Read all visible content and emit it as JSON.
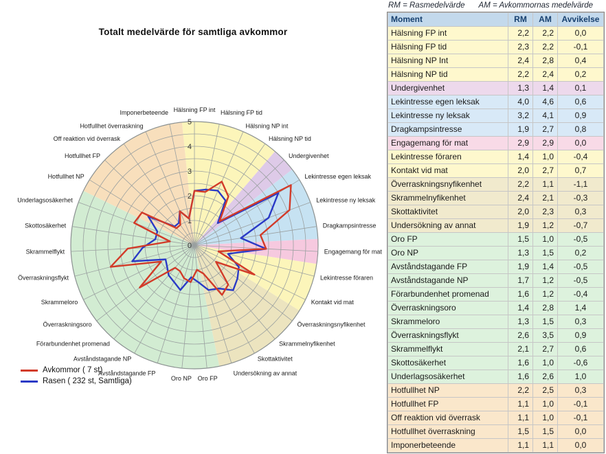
{
  "note": {
    "rm_def": "RM = Rasmedelvärde",
    "am_def": "AM = Avkommornas medelvärde"
  },
  "table": {
    "headers": [
      "Moment",
      "RM",
      "AM",
      "Avvikelse"
    ],
    "rows": [
      {
        "moment": "Hälsning FP int",
        "rm": "2,2",
        "am": "2,2",
        "avvikelse": "0,0",
        "group": "yellow"
      },
      {
        "moment": "Hälsning FP tid",
        "rm": "2,3",
        "am": "2,2",
        "avvikelse": "-0,1",
        "group": "yellow"
      },
      {
        "moment": "Hälsning NP Int",
        "rm": "2,4",
        "am": "2,8",
        "avvikelse": "0,4",
        "group": "yellow"
      },
      {
        "moment": "Hälsning NP tid",
        "rm": "2,2",
        "am": "2,4",
        "avvikelse": "0,2",
        "group": "yellow"
      },
      {
        "moment": "Undergivenhet",
        "rm": "1,3",
        "am": "1,4",
        "avvikelse": "0,1",
        "group": "violet"
      },
      {
        "moment": "Lekintresse egen leksak",
        "rm": "4,0",
        "am": "4,6",
        "avvikelse": "0,6",
        "group": "blue"
      },
      {
        "moment": "Lekintresse ny leksak",
        "rm": "3,2",
        "am": "4,1",
        "avvikelse": "0,9",
        "group": "blue"
      },
      {
        "moment": "Dragkampsintresse",
        "rm": "1,9",
        "am": "2,7",
        "avvikelse": "0,8",
        "group": "blue"
      },
      {
        "moment": "Engagemang för mat",
        "rm": "2,9",
        "am": "2,9",
        "avvikelse": "0,0",
        "group": "pink"
      },
      {
        "moment": "Lekintresse föraren",
        "rm": "1,4",
        "am": "1,0",
        "avvikelse": "-0,4",
        "group": "yellow"
      },
      {
        "moment": "Kontakt vid mat",
        "rm": "2,0",
        "am": "2,7",
        "avvikelse": "0,7",
        "group": "yellow"
      },
      {
        "moment": "Överraskningsnyfikenhet",
        "rm": "2,2",
        "am": "1,1",
        "avvikelse": "-1,1",
        "group": "tan"
      },
      {
        "moment": "Skrammelnyfikenhet",
        "rm": "2,4",
        "am": "2,1",
        "avvikelse": "-0,3",
        "group": "tan"
      },
      {
        "moment": "Skottaktivitet",
        "rm": "2,0",
        "am": "2,3",
        "avvikelse": "0,3",
        "group": "tan"
      },
      {
        "moment": "Undersökning av annat",
        "rm": "1,9",
        "am": "1,2",
        "avvikelse": "-0,7",
        "group": "tan"
      },
      {
        "moment": "Oro FP",
        "rm": "1,5",
        "am": "1,0",
        "avvikelse": "-0,5",
        "group": "green"
      },
      {
        "moment": "Oro NP",
        "rm": "1,3",
        "am": "1,5",
        "avvikelse": "0,2",
        "group": "green"
      },
      {
        "moment": "Avståndstagande FP",
        "rm": "1,9",
        "am": "1,4",
        "avvikelse": "-0,5",
        "group": "green"
      },
      {
        "moment": "Avståndstagande NP",
        "rm": "1,7",
        "am": "1,2",
        "avvikelse": "-0,5",
        "group": "green"
      },
      {
        "moment": "Förarbundenhet promenad",
        "rm": "1,6",
        "am": "1,2",
        "avvikelse": "-0,4",
        "group": "green"
      },
      {
        "moment": "Överraskningsoro",
        "rm": "1,4",
        "am": "2,8",
        "avvikelse": "1,4",
        "group": "green"
      },
      {
        "moment": "Skrammeloro",
        "rm": "1,3",
        "am": "1,5",
        "avvikelse": "0,3",
        "group": "green"
      },
      {
        "moment": "Överraskningsflykt",
        "rm": "2,6",
        "am": "3,5",
        "avvikelse": "0,9",
        "group": "green"
      },
      {
        "moment": "Skrammelflykt",
        "rm": "2,1",
        "am": "2,7",
        "avvikelse": "0,6",
        "group": "green"
      },
      {
        "moment": "Skottosäkerhet",
        "rm": "1,6",
        "am": "1,0",
        "avvikelse": "-0,6",
        "group": "green"
      },
      {
        "moment": "Underlagsosäkerhet",
        "rm": "1,6",
        "am": "2,6",
        "avvikelse": "1,0",
        "group": "green"
      },
      {
        "moment": "Hotfullhet NP",
        "rm": "2,2",
        "am": "2,5",
        "avvikelse": "0,3",
        "group": "peach"
      },
      {
        "moment": "Hotfullhet FP",
        "rm": "1,1",
        "am": "1,0",
        "avvikelse": "-0,1",
        "group": "peach"
      },
      {
        "moment": "Off reaktion vid överrask",
        "rm": "1,1",
        "am": "1,0",
        "avvikelse": "-0,1",
        "group": "peach"
      },
      {
        "moment": "Hotfullhet överraskning",
        "rm": "1,5",
        "am": "1,5",
        "avvikelse": "0,0",
        "group": "peach"
      },
      {
        "moment": "Imponerbeteende",
        "rm": "1,1",
        "am": "1,1",
        "avvikelse": "0,0",
        "group": "peach"
      }
    ]
  },
  "chart_data": {
    "type": "radar",
    "title": "Totalt medelvärde för samtliga avkommor",
    "scale": {
      "min": 0,
      "max": 5,
      "ring_step": 0.5,
      "ticks": [
        0,
        1,
        2,
        3,
        4,
        5
      ]
    },
    "axes": [
      "Hälsning FP int",
      "Hälsning FP tid",
      "Hälsning NP int",
      "Hälsning NP tid",
      "Undergivenhet",
      "Lekintresse egen leksak",
      "Lekintresse ny leksak",
      "Dragkampsintresse",
      "Engagemang för mat",
      "Lekintresse föraren",
      "Kontakt vid mat",
      "Överraskningsnyfikenhet",
      "Skrammelnyfikenhet",
      "Skottaktivitet",
      "Undersökning av annat",
      "Oro FP",
      "Oro NP",
      "Avståndstagande FP",
      "Avståndstagande NP",
      "Förarbundenhet promenad",
      "Överraskningsoro",
      "Skrammeloro",
      "Överraskningsflykt",
      "Skrammelflykt",
      "Skottosäkerhet",
      "Underlagsosäkerhet",
      "Hotfullhet NP",
      "Hotfullhet FP",
      "Off reaktion vid överrask",
      "Hotfullhet överraskning",
      "Imponerbeteende"
    ],
    "axis_groups": [
      "yellow",
      "yellow",
      "yellow",
      "yellow",
      "violet",
      "blue",
      "blue",
      "blue",
      "pink",
      "yellow",
      "yellow",
      "tan",
      "tan",
      "tan",
      "tan",
      "green",
      "green",
      "green",
      "green",
      "green",
      "green",
      "green",
      "green",
      "green",
      "green",
      "green",
      "peach",
      "peach",
      "peach",
      "peach",
      "peach"
    ],
    "group_colors": {
      "yellow": "#fcf5ba",
      "violet": "#decae8",
      "blue": "#c6e2f2",
      "pink": "#f6c9df",
      "tan": "#ece4bf",
      "green": "#d2ecd2",
      "peach": "#f8dfbc"
    },
    "grid_color": "#9aa0a0",
    "series": [
      {
        "id": "avkommor",
        "name": "Avkommor ( 7 st)",
        "color": "#d23b29",
        "values": [
          2.2,
          2.2,
          2.8,
          2.4,
          1.4,
          4.6,
          4.1,
          2.7,
          2.9,
          1.0,
          2.7,
          1.1,
          2.1,
          2.3,
          1.2,
          1.0,
          1.5,
          1.4,
          1.2,
          1.2,
          2.8,
          1.5,
          3.5,
          2.7,
          1.0,
          2.6,
          2.5,
          1.0,
          1.0,
          1.5,
          1.1
        ]
      },
      {
        "id": "rasen",
        "name": "Rasen ( 232 st, Samtliga)",
        "color": "#2a3ac6",
        "values": [
          2.2,
          2.3,
          2.4,
          2.2,
          1.3,
          4.0,
          3.2,
          1.9,
          2.9,
          1.4,
          2.0,
          2.2,
          2.4,
          2.0,
          1.9,
          1.5,
          1.3,
          1.9,
          1.7,
          1.6,
          1.4,
          1.3,
          2.6,
          2.1,
          1.6,
          1.6,
          2.2,
          1.1,
          1.1,
          1.5,
          1.1
        ]
      }
    ]
  }
}
